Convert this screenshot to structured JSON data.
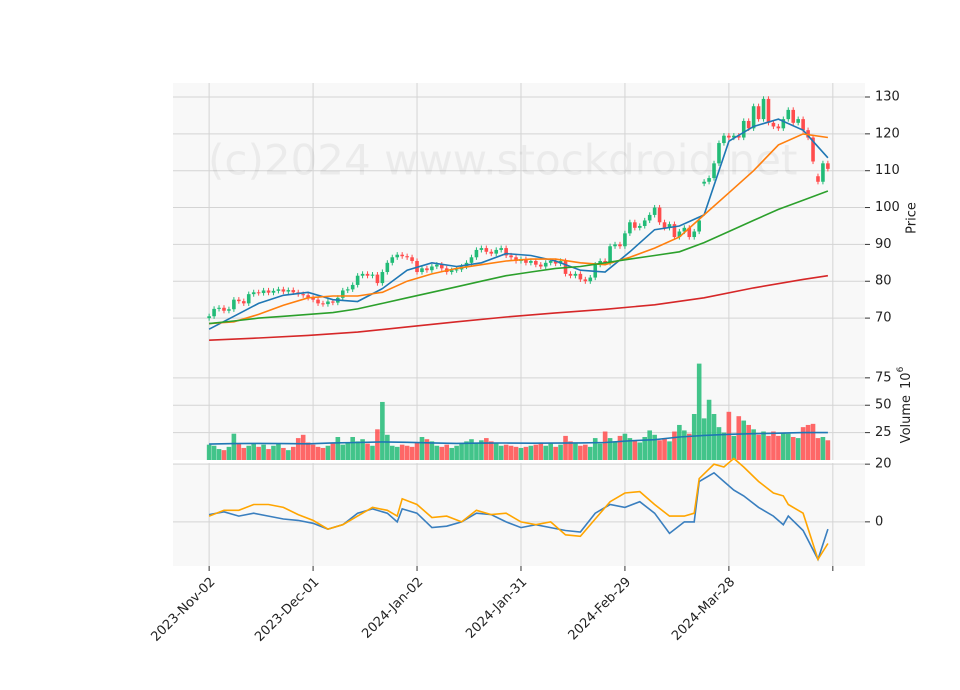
{
  "chart_data": [
    {
      "type": "candlestick",
      "watermark": "(c)2024 www.stockdroid.net",
      "y_label": "Price",
      "up_color": "#22bb77",
      "down_color": "#ff4d4d",
      "grid": true,
      "ylim": [
        60.8,
        133.8
      ],
      "yticks": [
        70,
        80,
        90,
        100,
        110,
        120,
        130
      ],
      "open": [
        70.0,
        70.5,
        72.5,
        72.8,
        72.0,
        72.4,
        75.0,
        74.6,
        74.0,
        76.5,
        77.0,
        76.8,
        77.5,
        76.9,
        77.4,
        77.8,
        77.2,
        77.6,
        77.0,
        76.5,
        76.2,
        75.5,
        75.0,
        74.0,
        73.8,
        74.5,
        74.2,
        75.5,
        77.5,
        77.8,
        79.0,
        81.5,
        82.0,
        81.5,
        81.8,
        79.5,
        82.5,
        85.0,
        86.5,
        87.2,
        86.8,
        86.5,
        85.5,
        82.5,
        83.5,
        83.0,
        84.0,
        84.5,
        83.5,
        82.5,
        83.0,
        83.2,
        84.0,
        85.0,
        86.5,
        88.5,
        89.0,
        88.0,
        87.5,
        88.5,
        89.0,
        87.0,
        86.5,
        85.5,
        86.0,
        85.0,
        85.5,
        84.5,
        84.0,
        85.0,
        85.5,
        84.8,
        85.5,
        82.0,
        81.5,
        82.0,
        80.5,
        80.0,
        81.0,
        84.5,
        85.5,
        85.0,
        89.5,
        90.0,
        89.5,
        93.0,
        96.0,
        94.5,
        95.0,
        96.5,
        98.0,
        100.0,
        96.0,
        94.5,
        95.5,
        92.0,
        93.5,
        94.5,
        92.0,
        93.5,
        106.5,
        107.0,
        108.0,
        112.0,
        117.5,
        119.5,
        119.0,
        119.5,
        119.0,
        123.5,
        121.5,
        127.5,
        124.0,
        129.5,
        123.0,
        122.0,
        121.5,
        124.0,
        126.5,
        123.0,
        124.0,
        121.0,
        119.0,
        108.5,
        107.0,
        112.0
      ],
      "high": [
        71.2,
        73.2,
        73.5,
        73.5,
        73.1,
        75.7,
        75.7,
        75.3,
        77.2,
        77.7,
        77.7,
        78.2,
        78.2,
        78.1,
        78.5,
        78.5,
        78.3,
        78.3,
        77.7,
        77.2,
        76.9,
        76.2,
        75.7,
        74.7,
        75.2,
        75.2,
        76.2,
        78.2,
        78.5,
        79.7,
        82.2,
        82.7,
        82.7,
        82.5,
        82.5,
        83.2,
        85.7,
        87.2,
        87.9,
        87.9,
        87.5,
        87.2,
        86.2,
        84.2,
        84.2,
        84.7,
        85.2,
        85.2,
        84.2,
        83.7,
        83.9,
        84.7,
        85.7,
        87.2,
        89.2,
        89.7,
        89.7,
        88.7,
        89.2,
        89.7,
        89.7,
        87.7,
        87.2,
        86.7,
        86.7,
        86.2,
        86.2,
        85.2,
        85.7,
        86.2,
        86.2,
        86.2,
        86.2,
        82.7,
        82.7,
        82.7,
        81.2,
        81.7,
        85.2,
        86.2,
        86.2,
        90.2,
        90.7,
        90.7,
        93.7,
        96.7,
        96.7,
        95.7,
        97.2,
        98.7,
        100.7,
        100.7,
        96.7,
        96.2,
        96.2,
        94.2,
        95.2,
        95.2,
        94.2,
        97.2,
        107.7,
        108.7,
        112.7,
        118.2,
        120.2,
        120.2,
        120.2,
        120.2,
        124.2,
        124.2,
        128.2,
        128.2,
        130.2,
        130.2,
        123.7,
        122.7,
        124.7,
        127.2,
        127.2,
        124.7,
        124.7,
        121.7,
        119.7,
        109.2,
        112.7,
        112.7
      ],
      "low": [
        69.3,
        69.8,
        71.8,
        71.3,
        71.3,
        71.7,
        73.9,
        73.3,
        73.3,
        75.8,
        76.1,
        76.1,
        76.2,
        76.2,
        76.7,
        76.5,
        76.5,
        76.3,
        75.8,
        75.5,
        74.8,
        74.3,
        73.3,
        73.1,
        73.1,
        73.5,
        73.5,
        74.8,
        76.8,
        77.1,
        78.3,
        80.8,
        80.8,
        80.8,
        78.8,
        78.8,
        81.8,
        84.3,
        85.8,
        86.1,
        85.8,
        84.8,
        81.8,
        81.8,
        82.3,
        82.3,
        83.3,
        82.8,
        81.8,
        81.8,
        82.3,
        82.5,
        83.3,
        84.3,
        85.8,
        87.8,
        87.3,
        86.8,
        86.8,
        87.8,
        86.3,
        85.8,
        84.8,
        84.8,
        84.3,
        84.3,
        83.8,
        83.3,
        83.3,
        84.3,
        84.1,
        84.1,
        81.3,
        80.8,
        80.8,
        79.8,
        79.3,
        79.3,
        80.3,
        83.8,
        84.3,
        84.3,
        88.8,
        88.8,
        88.8,
        92.3,
        93.8,
        93.8,
        94.3,
        95.8,
        97.3,
        95.3,
        93.8,
        93.8,
        91.3,
        91.3,
        92.8,
        91.3,
        91.3,
        92.8,
        105.8,
        106.3,
        107.3,
        111.3,
        116.8,
        118.3,
        118.3,
        118.3,
        118.3,
        120.8,
        120.8,
        123.3,
        123.3,
        122.3,
        121.3,
        120.8,
        120.8,
        123.3,
        122.3,
        122.3,
        120.3,
        118.3,
        111.8,
        106.3,
        106.3,
        109.8
      ],
      "close": [
        70.5,
        72.5,
        72.8,
        72.0,
        72.4,
        75.0,
        74.6,
        74.0,
        76.5,
        77.0,
        76.8,
        77.5,
        76.9,
        77.4,
        77.8,
        77.2,
        77.6,
        77.0,
        76.5,
        76.2,
        75.5,
        75.0,
        74.0,
        73.8,
        74.5,
        74.2,
        75.5,
        77.5,
        77.8,
        79.0,
        81.5,
        82.0,
        81.5,
        81.8,
        79.5,
        82.5,
        85.0,
        86.5,
        87.2,
        86.8,
        86.5,
        85.5,
        82.5,
        83.5,
        83.0,
        84.0,
        84.5,
        83.5,
        82.5,
        83.0,
        83.2,
        84.0,
        85.0,
        86.5,
        88.5,
        89.0,
        88.0,
        87.5,
        88.5,
        89.0,
        87.0,
        86.5,
        85.5,
        86.0,
        85.0,
        85.5,
        84.5,
        84.0,
        85.0,
        85.5,
        84.8,
        85.5,
        82.0,
        81.5,
        82.0,
        80.5,
        80.0,
        81.0,
        84.5,
        85.5,
        85.0,
        89.5,
        90.0,
        89.5,
        93.0,
        96.0,
        94.5,
        95.0,
        96.5,
        98.0,
        100.0,
        96.0,
        94.5,
        95.5,
        92.0,
        93.5,
        94.5,
        92.0,
        93.5,
        96.5,
        107.0,
        108.0,
        112.0,
        117.5,
        119.5,
        119.0,
        119.5,
        119.0,
        123.5,
        121.5,
        127.5,
        124.0,
        129.5,
        123.0,
        122.0,
        121.5,
        124.0,
        126.5,
        123.0,
        124.0,
        121.0,
        119.0,
        112.5,
        107.0,
        112.0,
        110.5
      ],
      "series": [
        {
          "color": "#1f77b4",
          "x": [
            0,
            5,
            10,
            15,
            20,
            25,
            30,
            35,
            40,
            45,
            50,
            55,
            60,
            65,
            70,
            75,
            80,
            85,
            90,
            95,
            100,
            105,
            110,
            115,
            120,
            125
          ],
          "values": [
            67.0,
            70.5,
            74.0,
            76.2,
            77.0,
            75.0,
            74.5,
            78.0,
            83.0,
            85.0,
            84.0,
            85.0,
            87.5,
            87.0,
            85.5,
            83.0,
            82.5,
            88.0,
            94.0,
            95.0,
            98.0,
            118.0,
            122.0,
            124.0,
            121.0,
            113.5
          ]
        },
        {
          "color": "#ff7f0e",
          "x": [
            0,
            5,
            10,
            15,
            20,
            25,
            30,
            35,
            40,
            45,
            50,
            55,
            60,
            65,
            70,
            75,
            80,
            85,
            90,
            95,
            100,
            105,
            110,
            115,
            120,
            125
          ],
          "values": [
            68.5,
            69.0,
            71.0,
            73.5,
            75.5,
            76.0,
            76.0,
            77.0,
            80.0,
            82.0,
            83.5,
            84.5,
            85.5,
            86.0,
            86.0,
            85.0,
            84.5,
            86.5,
            89.0,
            92.0,
            98.0,
            104.0,
            110.0,
            117.0,
            120.0,
            119.0
          ]
        },
        {
          "color": "#2ca02c",
          "x": [
            0,
            5,
            10,
            15,
            20,
            25,
            30,
            35,
            40,
            45,
            50,
            55,
            60,
            65,
            70,
            75,
            80,
            85,
            90,
            95,
            100,
            105,
            110,
            115,
            120,
            125
          ],
          "values": [
            68.5,
            69.2,
            70.0,
            70.5,
            71.0,
            71.5,
            72.5,
            74.0,
            75.5,
            77.0,
            78.5,
            80.0,
            81.5,
            82.5,
            83.5,
            84.0,
            85.0,
            86.0,
            87.0,
            88.0,
            90.5,
            93.5,
            96.5,
            99.5,
            102.0,
            104.5
          ]
        },
        {
          "color": "#d62728",
          "x": [
            0,
            10,
            20,
            30,
            40,
            50,
            60,
            70,
            80,
            90,
            100,
            110,
            120,
            125
          ],
          "values": [
            64.0,
            64.6,
            65.3,
            66.2,
            67.6,
            69.0,
            70.3,
            71.4,
            72.4,
            73.6,
            75.5,
            78.2,
            80.5,
            81.5
          ]
        }
      ]
    },
    {
      "type": "bar",
      "y_label": "Volume",
      "scale_base": "10",
      "scale_exponent": "6",
      "grid": true,
      "ylim": [
        0,
        98.6
      ],
      "yticks": [
        25,
        50,
        75
      ],
      "values": [
        14,
        13,
        10,
        9,
        12,
        24,
        15,
        11,
        13,
        15,
        12,
        14,
        10,
        13,
        15,
        11,
        9,
        12,
        20,
        23,
        16,
        14,
        12,
        11,
        13,
        16,
        21,
        14,
        16,
        21,
        17,
        19,
        15,
        13,
        28,
        53,
        23,
        13,
        12,
        14,
        13,
        12,
        16,
        21,
        19,
        17,
        13,
        12,
        14,
        11,
        13,
        15,
        17,
        19,
        16,
        18,
        20,
        17,
        15,
        13,
        14,
        13,
        12,
        11,
        12,
        13,
        14,
        16,
        13,
        15,
        12,
        14,
        22,
        17,
        15,
        13,
        14,
        12,
        20,
        15,
        26,
        20,
        17,
        22,
        24,
        20,
        18,
        16,
        21,
        27,
        23,
        18,
        20,
        17,
        26,
        32,
        27,
        24,
        42,
        88,
        38,
        55,
        42,
        30,
        25,
        44,
        22,
        40,
        36,
        32,
        28,
        23,
        26,
        22,
        26,
        22,
        25,
        24,
        21,
        20,
        30,
        32,
        33,
        20,
        21,
        18
      ],
      "series": [
        {
          "color": "#1f77b4",
          "x": [
            0,
            5,
            10,
            15,
            20,
            25,
            30,
            35,
            40,
            45,
            50,
            55,
            60,
            65,
            70,
            75,
            80,
            85,
            90,
            95,
            100,
            105,
            110,
            115,
            120,
            125
          ],
          "values": [
            14.5,
            15.0,
            15.2,
            15.0,
            14.8,
            15.6,
            16.0,
            16.5,
            16.2,
            15.6,
            15.2,
            15.4,
            15.5,
            15.3,
            15.4,
            15.6,
            16.0,
            17.5,
            18.5,
            21.0,
            22.5,
            23.5,
            24.0,
            24.5,
            25.0,
            25.0
          ]
        }
      ]
    },
    {
      "type": "line",
      "grid": true,
      "ylim": [
        -15.3,
        20.4
      ],
      "yticks": [
        0,
        20
      ],
      "xlim": [
        -7.3,
        132.5
      ],
      "xticks": [
        {
          "value": 0,
          "label": "2023-Nov-02"
        },
        {
          "value": 21,
          "label": "2023-Dec-01"
        },
        {
          "value": 42,
          "label": "2024-Jan-02"
        },
        {
          "value": 63,
          "label": "2024-Jan-31"
        },
        {
          "value": 84,
          "label": "2024-Feb-29"
        },
        {
          "value": 105,
          "label": "2024-Mar-28"
        },
        {
          "value": 126,
          "label": null
        }
      ],
      "series": [
        {
          "color": "#3a7fbf",
          "x": [
            0,
            3,
            6,
            9,
            12,
            15,
            18,
            21,
            24,
            27,
            30,
            33,
            36,
            38,
            39,
            42,
            45,
            48,
            51,
            54,
            57,
            60,
            63,
            66,
            69,
            72,
            75,
            78,
            81,
            84,
            87,
            90,
            93,
            96,
            98,
            99,
            102,
            104,
            106,
            108,
            111,
            114,
            116,
            117,
            120,
            123,
            125
          ],
          "values": [
            2.5,
            3.5,
            2,
            3,
            2,
            1,
            0.5,
            -0.5,
            -2.5,
            -1,
            3,
            4.5,
            3,
            0,
            4.5,
            3,
            -2,
            -1.5,
            0,
            3,
            2.5,
            0,
            -2,
            -1,
            -2,
            -3,
            -3.5,
            3,
            6,
            5,
            7,
            3,
            -4,
            0,
            0,
            14,
            17,
            14,
            11,
            9,
            5,
            2,
            -1,
            2,
            -3,
            -13,
            -2.5
          ]
        },
        {
          "color": "#ffa500",
          "x": [
            0,
            3,
            6,
            9,
            12,
            15,
            18,
            21,
            24,
            27,
            30,
            33,
            36,
            38,
            39,
            42,
            45,
            48,
            51,
            54,
            57,
            60,
            63,
            66,
            69,
            72,
            75,
            78,
            81,
            84,
            87,
            90,
            93,
            96,
            98,
            99,
            102,
            104,
            106,
            108,
            111,
            114,
            116,
            117,
            120,
            123,
            125
          ],
          "values": [
            2,
            4,
            4,
            6,
            6,
            5,
            2.5,
            0.5,
            -2.5,
            -1,
            2,
            5,
            4,
            2,
            8,
            6,
            1.5,
            2,
            0,
            4,
            2.5,
            3,
            0,
            -1,
            0,
            -4.5,
            -5,
            1,
            7,
            10,
            10.5,
            6,
            2,
            2,
            3,
            15,
            20,
            19,
            22,
            19,
            14,
            10,
            9,
            6,
            3,
            -13,
            -7.5
          ]
        }
      ]
    }
  ]
}
